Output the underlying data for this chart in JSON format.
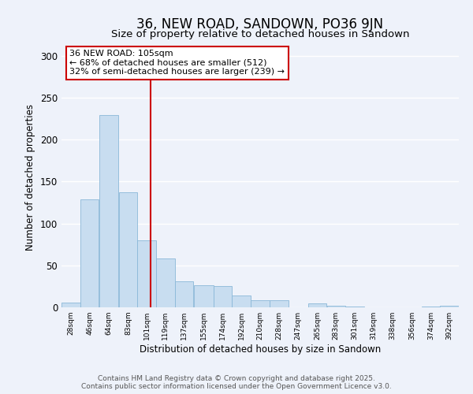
{
  "title": "36, NEW ROAD, SANDOWN, PO36 9JN",
  "subtitle": "Size of property relative to detached houses in Sandown",
  "xlabel": "Distribution of detached houses by size in Sandown",
  "ylabel": "Number of detached properties",
  "bin_labels": [
    "28sqm",
    "46sqm",
    "64sqm",
    "83sqm",
    "101sqm",
    "119sqm",
    "137sqm",
    "155sqm",
    "174sqm",
    "192sqm",
    "210sqm",
    "228sqm",
    "247sqm",
    "265sqm",
    "283sqm",
    "301sqm",
    "319sqm",
    "338sqm",
    "356sqm",
    "374sqm",
    "392sqm"
  ],
  "bar_values": [
    6,
    129,
    229,
    137,
    80,
    58,
    31,
    26,
    25,
    14,
    8,
    8,
    0,
    5,
    2,
    1,
    0,
    0,
    0,
    1,
    2
  ],
  "bin_edges": [
    19,
    37,
    55,
    74,
    92,
    110,
    128,
    146,
    165,
    183,
    201,
    219,
    237,
    256,
    274,
    292,
    310,
    328,
    347,
    365,
    383,
    401
  ],
  "bar_color": "#c8ddf0",
  "bar_edge_color": "#8ab8d8",
  "vline_x": 105,
  "vline_color": "#cc0000",
  "annotation_text": "36 NEW ROAD: 105sqm\n← 68% of detached houses are smaller (512)\n32% of semi-detached houses are larger (239) →",
  "annotation_box_edge": "#cc0000",
  "ylim": [
    0,
    310
  ],
  "yticks": [
    0,
    50,
    100,
    150,
    200,
    250,
    300
  ],
  "footer_line1": "Contains HM Land Registry data © Crown copyright and database right 2025.",
  "footer_line2": "Contains public sector information licensed under the Open Government Licence v3.0.",
  "background_color": "#eef2fa",
  "plot_background": "#eef2fa",
  "grid_color": "#ffffff",
  "title_fontsize": 12,
  "subtitle_fontsize": 9.5,
  "annotation_fontsize": 8,
  "footer_fontsize": 6.5
}
